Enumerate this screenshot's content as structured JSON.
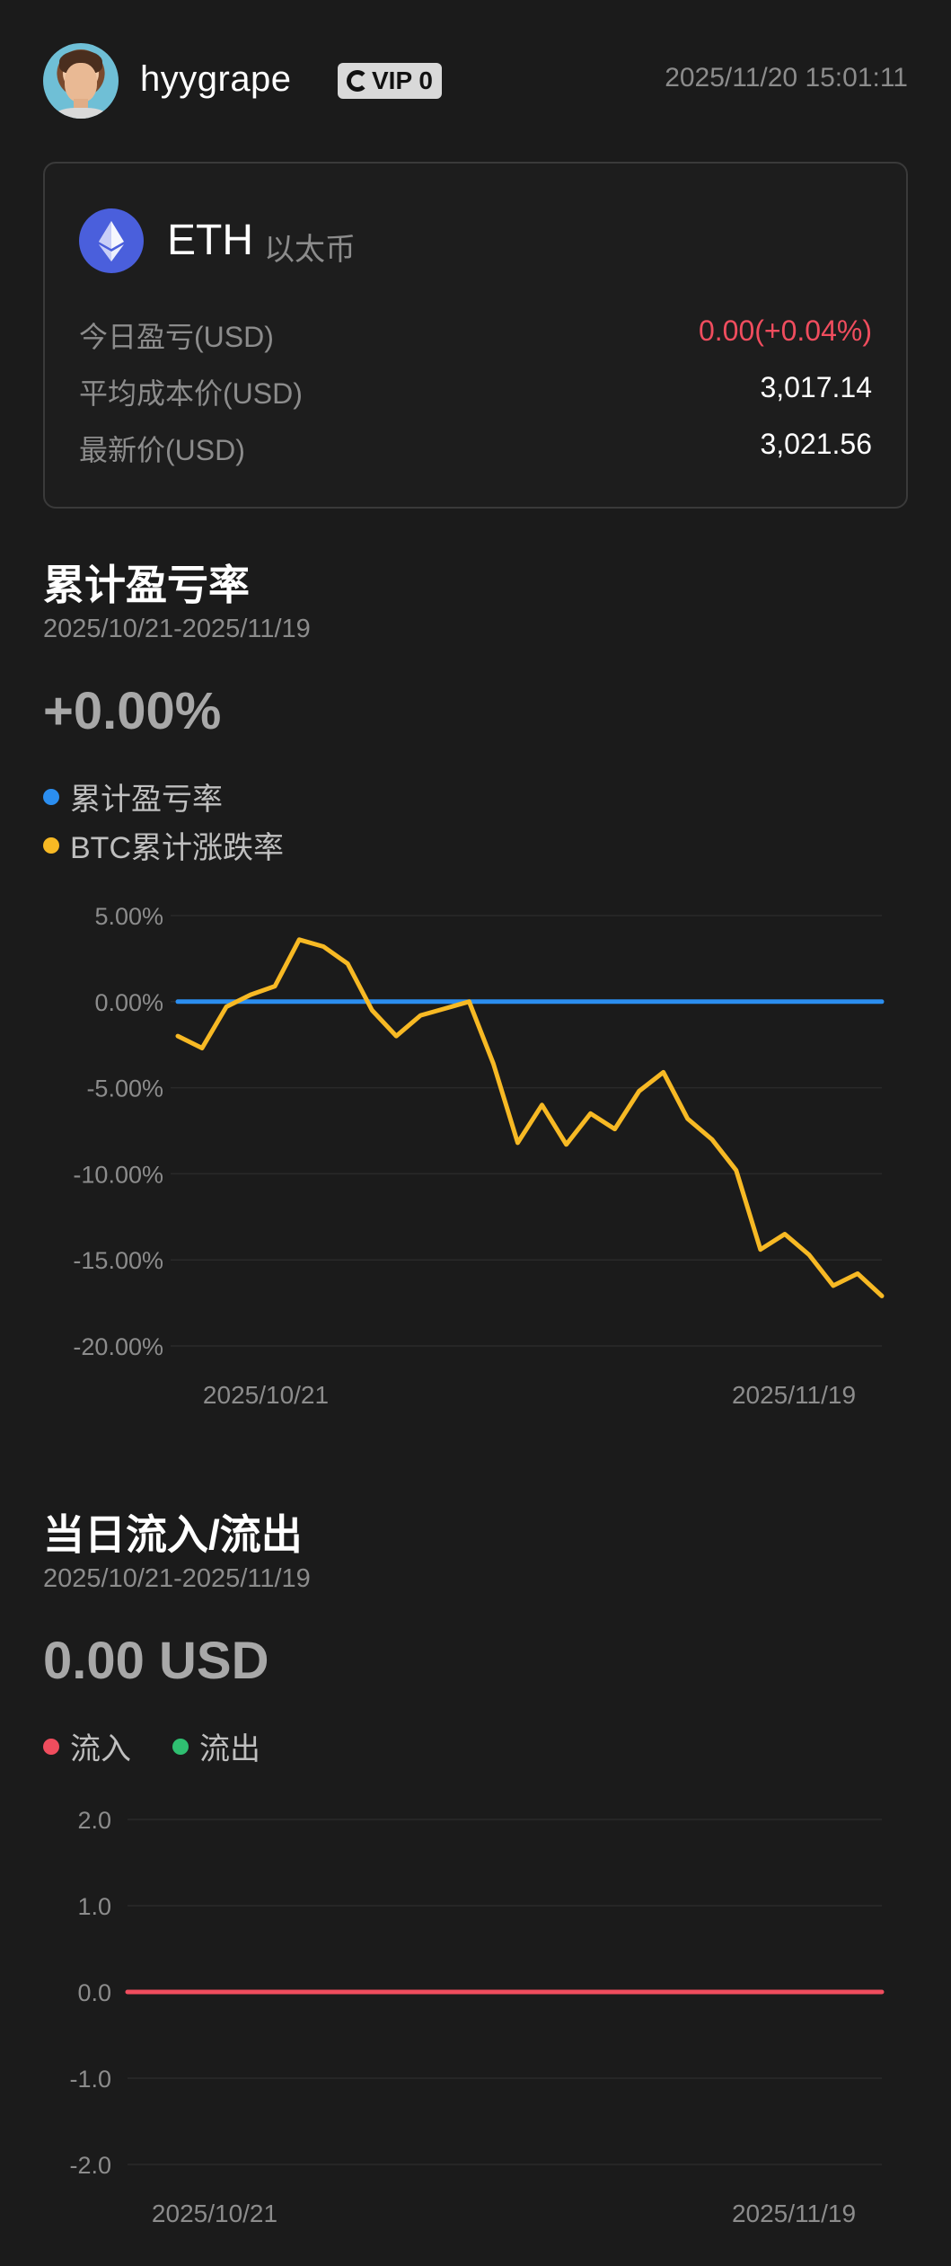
{
  "header": {
    "username": "hyygrape",
    "vip": "VIP 0",
    "timestamp": "2025/11/20 15:01:11"
  },
  "asset": {
    "symbol": "ETH",
    "name_cn": "以太币",
    "rows": [
      {
        "label": "今日盈亏(USD)",
        "value": "0.00(+0.04%)"
      },
      {
        "label": "平均成本价(USD)",
        "value": "3,017.14"
      },
      {
        "label": "最新价(USD)",
        "value": "3,021.56"
      }
    ],
    "colors": {
      "positive": "#f04d5e",
      "icon_bg": "#4a5fdc"
    }
  },
  "pnl": {
    "title": "累计盈亏率",
    "range": "2025/10/21-2025/11/19",
    "value": "+0.00%",
    "legend": [
      {
        "label": "累计盈亏率",
        "color": "#2b8ef0"
      },
      {
        "label": "BTC累计涨跌率",
        "color": "#f7b924"
      }
    ]
  },
  "flow": {
    "title": "当日流入/流出",
    "range": "2025/10/21-2025/11/19",
    "value": "0.00 USD",
    "legend": [
      {
        "label": "流入",
        "color": "#f04d5e"
      },
      {
        "label": "流出",
        "color": "#2fbf71"
      }
    ]
  },
  "chart_data": [
    {
      "type": "line",
      "yticks": [
        "5.00%",
        "0.00%",
        "-5.00%",
        "-10.00%",
        "-15.00%",
        "-20.00%"
      ],
      "ylim": [
        -20,
        5
      ],
      "xticks": [
        "2025/10/21",
        "2025/11/19"
      ],
      "grid": true,
      "series": [
        {
          "name": "累计盈亏率",
          "color": "#2b8ef0",
          "values": [
            0,
            0,
            0,
            0,
            0,
            0,
            0,
            0,
            0,
            0,
            0,
            0,
            0,
            0,
            0,
            0,
            0,
            0,
            0,
            0,
            0,
            0,
            0,
            0,
            0,
            0,
            0,
            0,
            0,
            0
          ]
        },
        {
          "name": "BTC累计涨跌率",
          "color": "#f7b924",
          "values": [
            -2.0,
            -2.7,
            -0.3,
            0.4,
            0.9,
            3.6,
            3.2,
            2.2,
            -0.5,
            -2.0,
            -0.8,
            -0.4,
            0.0,
            -3.6,
            -8.2,
            -6.0,
            -8.3,
            -6.5,
            -7.4,
            -5.2,
            -4.1,
            -6.8,
            -8.0,
            -9.8,
            -14.4,
            -13.5,
            -14.7,
            -16.5,
            -15.8,
            -17.1
          ]
        }
      ]
    },
    {
      "type": "line",
      "yticks": [
        "2.0",
        "1.0",
        "0.0",
        "-1.0",
        "-2.0"
      ],
      "ylim": [
        -2,
        2
      ],
      "xticks": [
        "2025/10/21",
        "2025/11/19"
      ],
      "grid": true,
      "series": [
        {
          "name": "流入",
          "color": "#f04d5e",
          "values": [
            0,
            0,
            0,
            0,
            0,
            0,
            0,
            0,
            0,
            0,
            0,
            0,
            0,
            0,
            0,
            0,
            0,
            0,
            0,
            0,
            0,
            0,
            0,
            0,
            0,
            0,
            0,
            0,
            0,
            0
          ]
        }
      ]
    }
  ]
}
